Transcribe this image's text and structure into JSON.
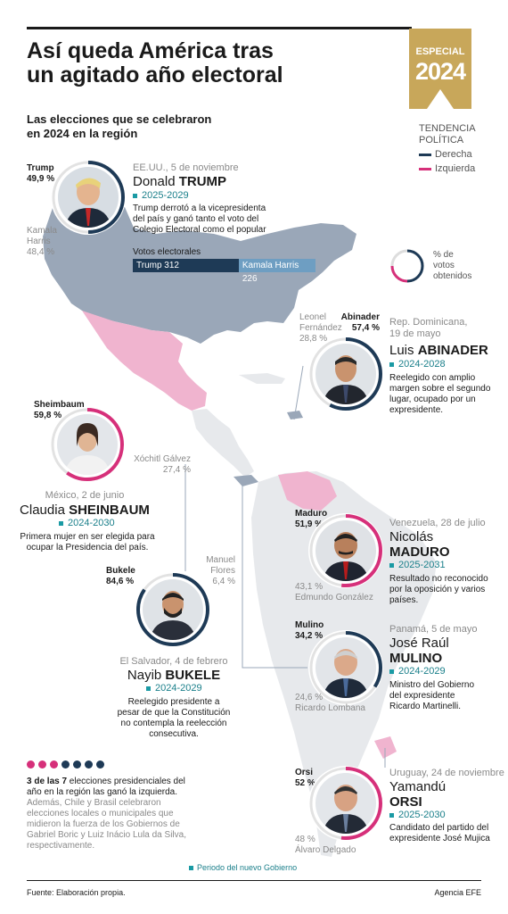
{
  "header": {
    "title_line1": "Así queda América tras",
    "title_line2": "un agitado año electoral",
    "badge_top": "ESPECIAL",
    "badge_year": "2024",
    "subtitle_line1": "Las elecciones que se celebraron",
    "subtitle_line2": "en 2024 en la región"
  },
  "legend": {
    "title_line1": "TENDENCIA",
    "title_line2": "POLÍTICA",
    "items": [
      {
        "label": "Derecha",
        "color": "#1e3a56"
      },
      {
        "label": "Izquierda",
        "color": "#d6307a"
      }
    ],
    "ring_label_line1": "% de",
    "ring_label_line2": "votos",
    "ring_label_line3": "obtenidos"
  },
  "colors": {
    "right": "#1e3a56",
    "left": "#d6307a",
    "teal": "#1a9aa4",
    "usa_map": "#9aa7b8",
    "left_map": "#f0b4cf",
    "gold": "#c8a75a"
  },
  "elections": {
    "usa": {
      "winner_short": "Trump",
      "winner_pct": "49,9 %",
      "winner_share": 49.9,
      "rival_line1": "Kamala",
      "rival_line2": "Harris",
      "rival_pct": "48,4 %",
      "country": "EE.UU., 5 de noviembre",
      "first_name": "Donald",
      "last_name": "TRUMP",
      "period": "2025-2029",
      "desc": [
        "Trump derrotó a la vicepresidenta",
        "del país y ganó tanto el voto del",
        "Colegio Electoral como el popular"
      ],
      "votes_label": "Votos electorales",
      "votes_trump": "Trump 312",
      "votes_harris": "Kamala Harris 226",
      "votes_trump_value": 312,
      "votes_harris_value": 226
    },
    "dominicana": {
      "winner_short": "Abinader",
      "winner_pct": "57,4 %",
      "winner_share": 57.4,
      "rival_line1": "Leonel",
      "rival_line2": "Fernández",
      "rival_pct": "28,8 %",
      "country_line1": "Rep. Dominicana,",
      "country_line2": "19 de mayo",
      "first_name": "Luis",
      "last_name": "ABINADER",
      "period": "2024-2028",
      "desc": [
        "Reelegido con amplio",
        "margen sobre el segundo",
        "lugar, ocupado por un",
        "expresidente."
      ]
    },
    "mexico": {
      "winner_short": "Sheimbaum",
      "winner_pct": "59,8 %",
      "winner_share": 59.8,
      "rival_line1": "Xóchitl Gálvez",
      "rival_pct": "27,4 %",
      "country": "México, 2 de junio",
      "first_name": "Claudia",
      "last_name": "SHEINBAUM",
      "period": "2024-2030",
      "desc": [
        "Primera mujer en ser elegida para",
        "ocupar la Presidencia del país."
      ]
    },
    "venezuela": {
      "winner_short": "Maduro",
      "winner_pct": "51,9 %",
      "winner_share": 51.9,
      "rival_line1": "43,1 %",
      "rival_line2": "Edmundo González",
      "country": "Venezuela, 28 de julio",
      "first_name": "Nicolás",
      "last_name": "MADURO",
      "period": "2025-2031",
      "desc": [
        "Resultado no reconocido",
        "por la oposición y varios",
        "países."
      ]
    },
    "salvador": {
      "winner_short": "Bukele",
      "winner_pct": "84,6 %",
      "winner_share": 84.6,
      "rival_line1": "Manuel",
      "rival_line2": "Flores",
      "rival_pct": "6,4 %",
      "country": "El Salvador, 4 de febrero",
      "first_name": "Nayib",
      "last_name": "BUKELE",
      "period": "2024-2029",
      "desc": [
        "Reelegido presidente a",
        "pesar de que la Constitución",
        "no contempla la reelección",
        "consecutiva."
      ]
    },
    "panama": {
      "winner_short": "Mulino",
      "winner_pct": "34,2 %",
      "winner_share": 34.2,
      "rival_line1": "24,6 %",
      "rival_line2": "Ricardo Lombana",
      "country": "Panamá, 5 de mayo",
      "first_name": "José Raúl",
      "last_name": "MULINO",
      "period": "2024-2029",
      "desc": [
        "Ministro del Gobierno",
        "del expresidente",
        "Ricardo Martinelli."
      ]
    },
    "uruguay": {
      "winner_short": "Orsi",
      "winner_pct": "52 %",
      "winner_share": 52,
      "rival_line1": "48 %",
      "rival_line2": "Álvaro Delgado",
      "country": "Uruguay, 24 de noviembre",
      "first_name": "Yamandú",
      "last_name": "ORSI",
      "period": "2025-2030",
      "desc": [
        "Candidato del partido del",
        "expresidente José Mujica"
      ]
    }
  },
  "summary": {
    "bold": "3 de las 7",
    "text1": " elecciones presidenciales del año en la región las ganó la izquierda.",
    "text2": " Además, Chile y Brasil celebraron elecciones locales o municipales que midieron la fuerza de los Gobiernos de Gabriel Boric y Luiz Inácio Lula da Silva, respectivamente.",
    "dots": [
      "#d6307a",
      "#d6307a",
      "#d6307a",
      "#1e3a56",
      "#1e3a56",
      "#1e3a56",
      "#1e3a56"
    ]
  },
  "footer": {
    "footnote": "Periodo del nuevo Gobierno",
    "source": "Fuente: Elaboración propia.",
    "agency": "Agencia EFE"
  }
}
